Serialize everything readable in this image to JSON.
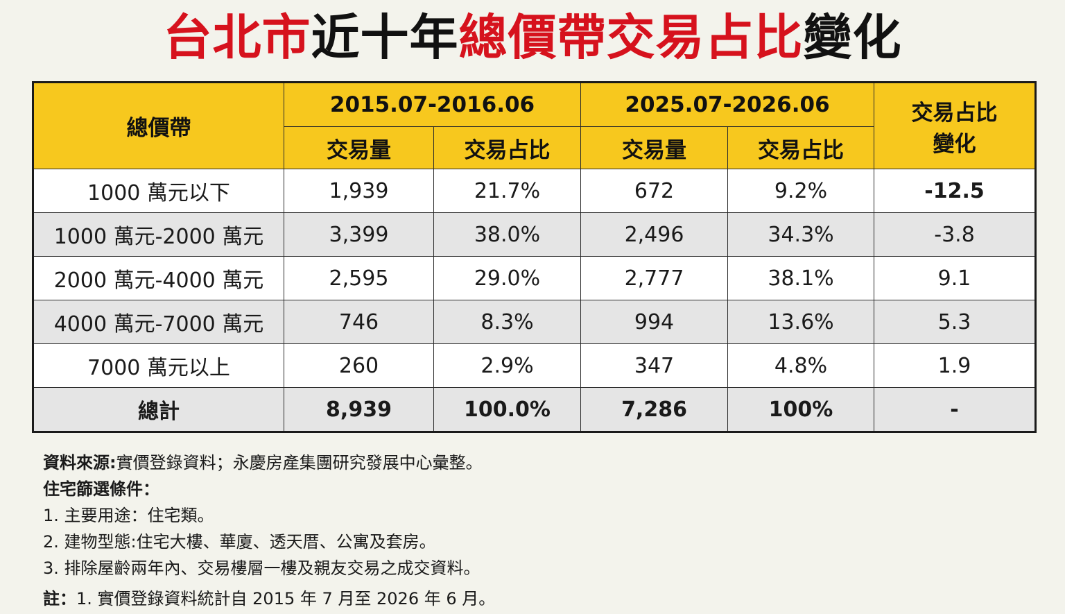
{
  "title": {
    "part1": "台北市",
    "part2": "近十年",
    "part3": "總價帶交易占比",
    "part4": "變化"
  },
  "colors": {
    "header_bg": "#f7c81e",
    "title_red": "#d6121d",
    "negative_highlight": "#d6121d"
  },
  "table": {
    "corner_header": "總價帶",
    "period1": "2015.07-2016.06",
    "period2": "2025.07-2026.06",
    "change_header_line1": "交易占比",
    "change_header_line2": "變化",
    "sub_volume": "交易量",
    "sub_share": "交易占比",
    "rows": [
      {
        "band": "1000 萬元以下",
        "v1": "1,939",
        "s1": "21.7%",
        "v2": "672",
        "s2": "9.2%",
        "change": "-12.5"
      },
      {
        "band": "1000 萬元-2000 萬元",
        "v1": "3,399",
        "s1": "38.0%",
        "v2": "2,496",
        "s2": "34.3%",
        "change": "-3.8"
      },
      {
        "band": "2000 萬元-4000 萬元",
        "v1": "2,595",
        "s1": "29.0%",
        "v2": "2,777",
        "s2": "38.1%",
        "change": "9.1"
      },
      {
        "band": "4000 萬元-7000 萬元",
        "v1": "746",
        "s1": "8.3%",
        "v2": "994",
        "s2": "13.6%",
        "change": "5.3"
      },
      {
        "band": "7000 萬元以上",
        "v1": "260",
        "s1": "2.9%",
        "v2": "347",
        "s2": "4.8%",
        "change": "1.9"
      }
    ],
    "total": {
      "band": "總計",
      "v1": "8,939",
      "s1": "100.0%",
      "v2": "7,286",
      "s2": "100%",
      "change": "-"
    }
  },
  "notes": {
    "source_label": "資料來源:",
    "source_text": "實價登錄資料；永慶房產集團研究發展中心彙整。",
    "criteria_label": "住宅篩選條件：",
    "criteria": [
      "1. 主要用途：住宅類。",
      "2. 建物型態:住宅大樓、華廈、透天厝、公寓及套房。",
      "3. 排除屋齡兩年內、交易樓層一樓及親友交易之成交資料。"
    ],
    "remark_label": "註：",
    "remark_text": "1. 實價登錄資料統計自 2015 年 7 月至 2026 年 6 月。"
  }
}
